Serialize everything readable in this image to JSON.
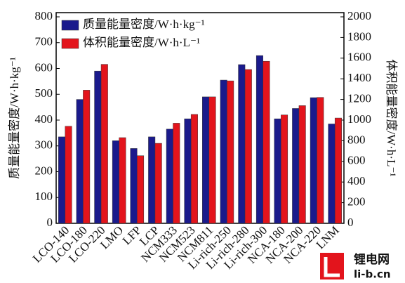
{
  "chart_data": {
    "type": "bar",
    "ylabel": "质量能量密度/W·h·kg⁻¹",
    "y2label": "体积能量密度/W·h·L⁻¹",
    "categories": [
      "LCO-140",
      "LCO-180",
      "LCO-220",
      "LMO",
      "LFP",
      "LCP",
      "NCM333",
      "NCM523",
      "NCM811",
      "Li-rich-250",
      "Li-rich-280",
      "Li-rich-300",
      "NCA-180",
      "NCA-200",
      "NCA-220",
      "LNM"
    ],
    "series": [
      {
        "name": "质量能量密度/W·h·kg⁻¹",
        "color": "#1a1a8c",
        "values": [
          335,
          480,
          590,
          320,
          290,
          335,
          365,
          405,
          490,
          555,
          615,
          650,
          405,
          445,
          487,
          385
        ]
      },
      {
        "name": "体积能量密度/W·h·L⁻¹",
        "color": "#e3141c",
        "axis": "y2",
        "values": [
          940,
          1290,
          1540,
          830,
          655,
          775,
          970,
          1055,
          1225,
          1380,
          1490,
          1570,
          1050,
          1140,
          1220,
          1020
        ]
      }
    ],
    "ylim": [
      0,
      800
    ],
    "yticks": [
      0,
      100,
      200,
      300,
      400,
      500,
      600,
      700,
      800
    ],
    "y2lim": [
      0,
      2000
    ],
    "y2ticks": [
      0,
      200,
      400,
      600,
      800,
      1000,
      1200,
      1400,
      1600,
      1800,
      2000
    ],
    "legend": "upper-left",
    "watermark": {
      "title": "锂电网",
      "url": "li-b.cn"
    }
  }
}
